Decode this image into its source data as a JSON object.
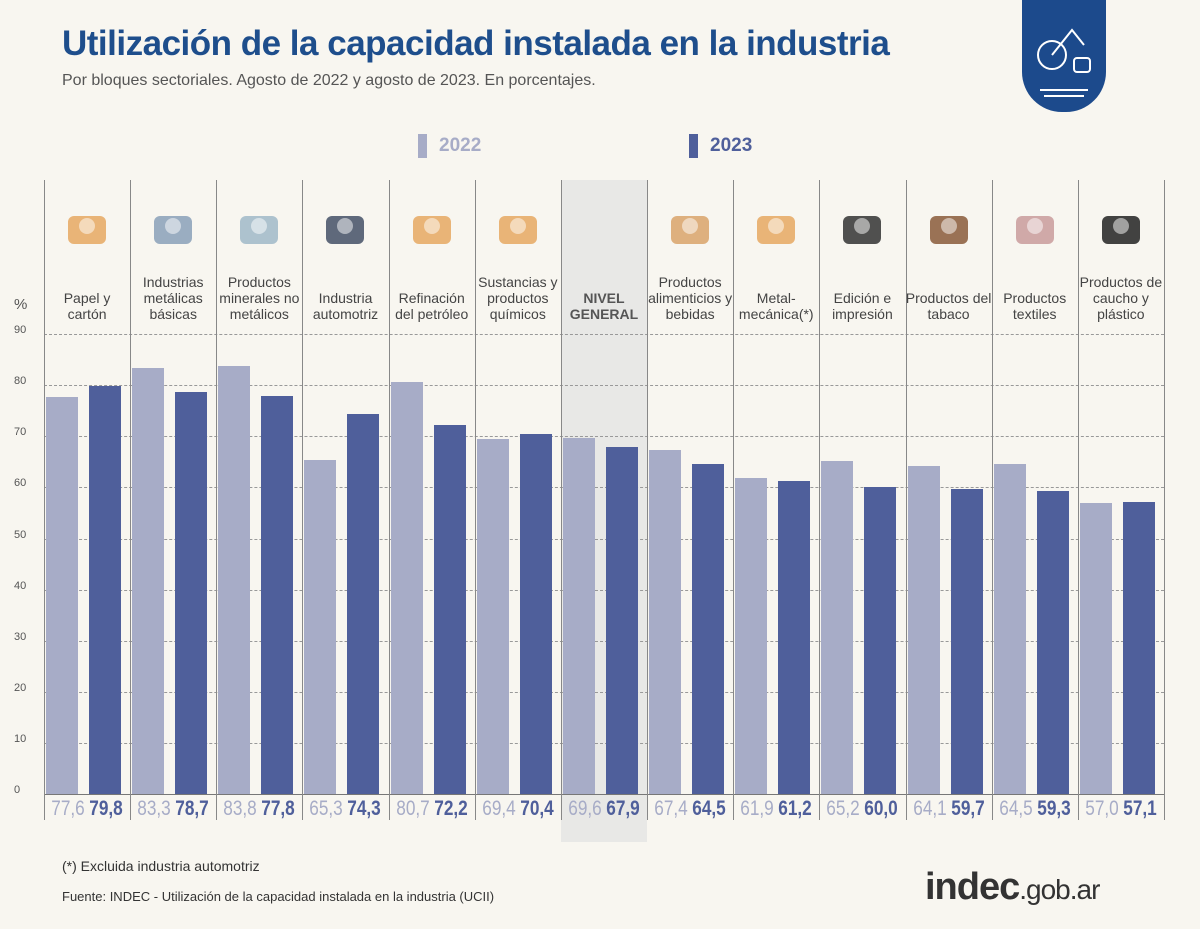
{
  "title": "Utilización de la capacidad instalada en la industria",
  "subtitle": "Por bloques sectoriales. Agosto de 2022 y agosto de 2023. En porcentajes.",
  "note": "(*) Excluida industria automotriz",
  "source": "Fuente: INDEC - Utilización de la capacidad instalada en la industria (UCII)",
  "brand": {
    "main": "indec",
    "suffix": ".gob.ar"
  },
  "colors": {
    "2022": "#a7acc7",
    "2023": "#4f5f9b",
    "title": "#1e4e8c",
    "highlight": "#e8e8e6"
  },
  "chart_data": {
    "type": "bar",
    "ylabel": "%",
    "ylim": [
      0,
      90
    ],
    "yticks": [
      0,
      10,
      20,
      30,
      40,
      50,
      60,
      70,
      80,
      90
    ],
    "grid": true,
    "legend": "top",
    "categories": [
      "Papel y cartón",
      "Industrias metálicas básicas",
      "Productos minerales no metálicos",
      "Industria automotriz",
      "Refinación del petróleo",
      "Sustancias y productos químicos",
      "NIVEL GENERAL",
      "Productos alimenticios y bebidas",
      "Metal-mecánica(*)",
      "Edición e impresión",
      "Productos del tabaco",
      "Productos textiles",
      "Productos de caucho y plástico"
    ],
    "icons": [
      "box-icon",
      "steel-coil-icon",
      "cement-mixer-icon",
      "car-icon",
      "refinery-icon",
      "flask-icon",
      "",
      "food-bottle-bread-icon",
      "gears-icon",
      "printing-rolls-icon",
      "pipe-cigarette-icon",
      "textile-rolls-icon",
      "tire-bottle-icon"
    ],
    "series": [
      {
        "name": "2022",
        "values_text": [
          "77,6",
          "83,3",
          "83,8",
          "65,3",
          "80,7",
          "69,4",
          "69,6",
          "67,4",
          "61,9",
          "65,2",
          "64,1",
          "64,5",
          "57,0"
        ],
        "values": [
          77.6,
          83.3,
          83.8,
          65.3,
          80.7,
          69.4,
          69.6,
          67.4,
          61.9,
          65.2,
          64.1,
          64.5,
          57.0
        ]
      },
      {
        "name": "2023",
        "values_text": [
          "79,8",
          "78,7",
          "77,8",
          "74,3",
          "72,2",
          "70,4",
          "67,9",
          "64,5",
          "61,2",
          "60,0",
          "59,7",
          "59,3",
          "57,1"
        ],
        "values": [
          79.8,
          78.7,
          77.8,
          74.3,
          72.2,
          70.4,
          67.9,
          64.5,
          61.2,
          60.0,
          59.7,
          59.3,
          57.1
        ]
      }
    ]
  }
}
